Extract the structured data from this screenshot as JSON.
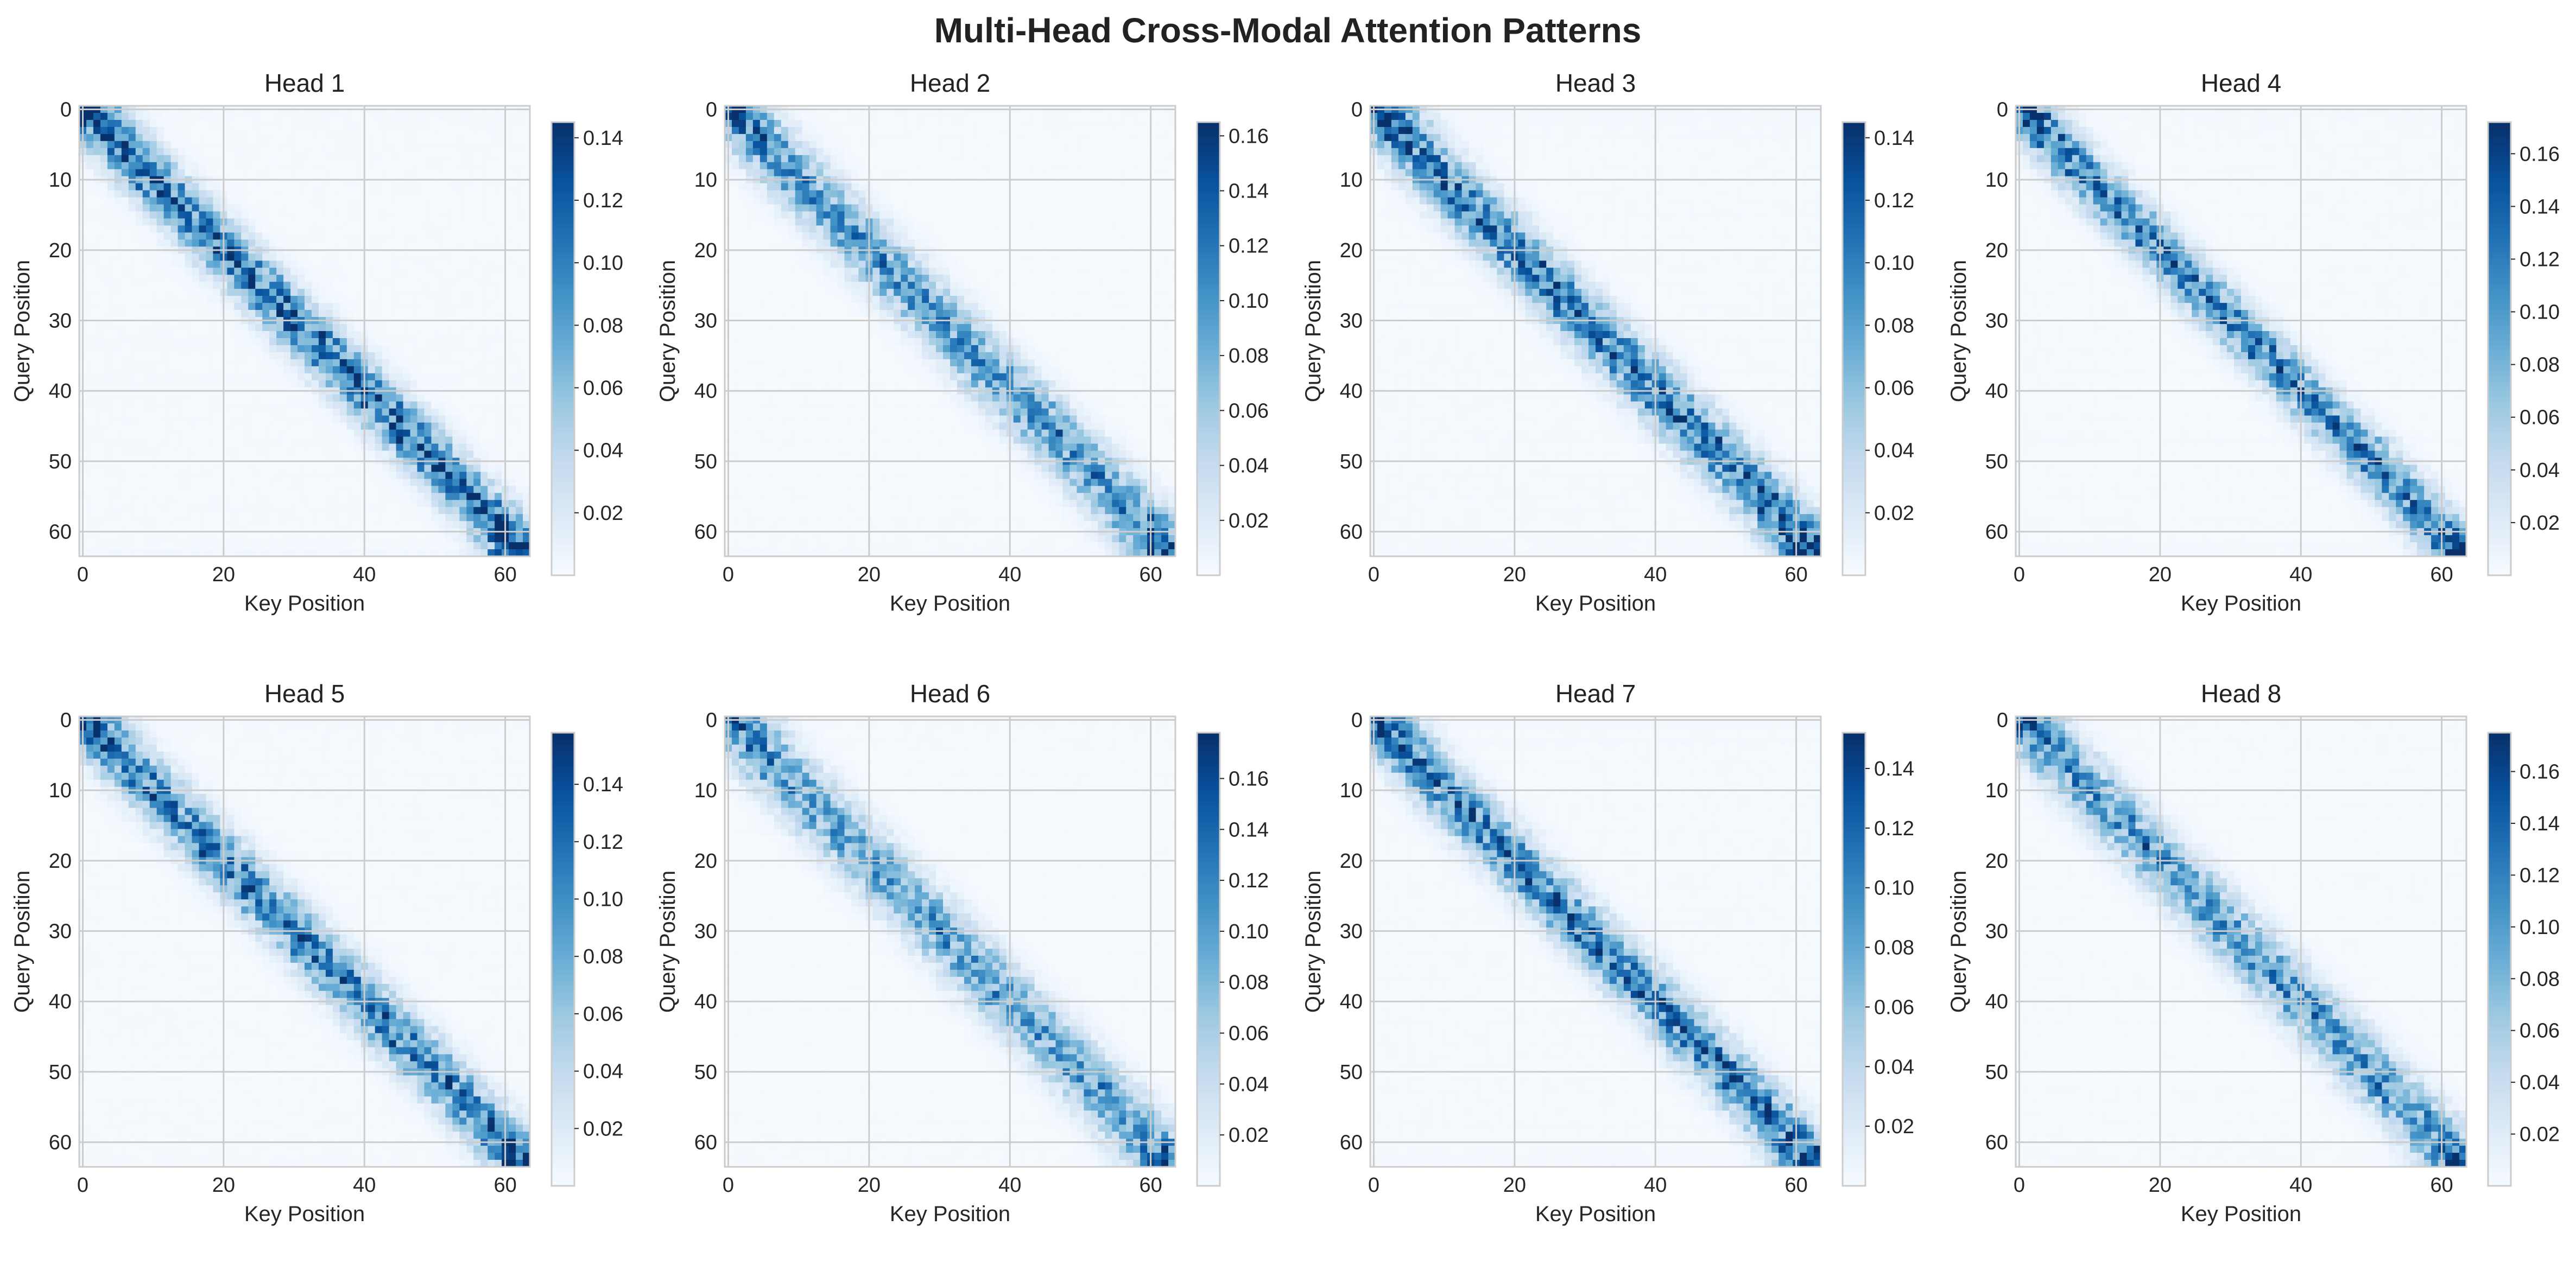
{
  "figure": {
    "title": "Multi-Head Cross-Modal Attention Patterns"
  },
  "colormap": {
    "name": "Blues",
    "stops": [
      "#f7fbff",
      "#deebf7",
      "#c6dbef",
      "#9ecae1",
      "#6baed6",
      "#4292c6",
      "#2171b5",
      "#08519c",
      "#08306b"
    ]
  },
  "chart_data": [
    {
      "type": "heatmap",
      "title": "Head 1",
      "xlabel": "Key Position",
      "ylabel": "Query Position",
      "matrix_size": 64,
      "xticks": [
        0,
        20,
        40,
        60
      ],
      "yticks": [
        0,
        10,
        20,
        30,
        40,
        50,
        60
      ],
      "grid": true,
      "vmin": 0.0,
      "vmax": 0.145,
      "colorbar_ticks": [
        0.02,
        0.04,
        0.06,
        0.08,
        0.1,
        0.12,
        0.14
      ],
      "colorbar_labels": [
        "0.02",
        "0.04",
        "0.06",
        "0.08",
        "0.10",
        "0.12",
        "0.14"
      ],
      "pattern": "diagonal",
      "band_width": 3.2,
      "edge_boost": 1.6,
      "seed": 11
    },
    {
      "type": "heatmap",
      "title": "Head 2",
      "xlabel": "Key Position",
      "ylabel": "Query Position",
      "matrix_size": 64,
      "xticks": [
        0,
        20,
        40,
        60
      ],
      "yticks": [
        0,
        10,
        20,
        30,
        40,
        50,
        60
      ],
      "grid": true,
      "vmin": 0.0,
      "vmax": 0.165,
      "colorbar_ticks": [
        0.02,
        0.04,
        0.06,
        0.08,
        0.1,
        0.12,
        0.14,
        0.16
      ],
      "colorbar_labels": [
        "0.02",
        "0.04",
        "0.06",
        "0.08",
        "0.10",
        "0.12",
        "0.14",
        "0.16"
      ],
      "pattern": "diagonal",
      "band_width": 3.6,
      "edge_boost": 1.5,
      "seed": 23
    },
    {
      "type": "heatmap",
      "title": "Head 3",
      "xlabel": "Key Position",
      "ylabel": "Query Position",
      "matrix_size": 64,
      "xticks": [
        0,
        20,
        40,
        60
      ],
      "yticks": [
        0,
        10,
        20,
        30,
        40,
        50,
        60
      ],
      "grid": true,
      "vmin": 0.0,
      "vmax": 0.145,
      "colorbar_ticks": [
        0.02,
        0.04,
        0.06,
        0.08,
        0.1,
        0.12,
        0.14
      ],
      "colorbar_labels": [
        "0.02",
        "0.04",
        "0.06",
        "0.08",
        "0.10",
        "0.12",
        "0.14"
      ],
      "pattern": "diagonal",
      "band_width": 3.4,
      "edge_boost": 1.7,
      "seed": 37
    },
    {
      "type": "heatmap",
      "title": "Head 4",
      "xlabel": "Key Position",
      "ylabel": "Query Position",
      "matrix_size": 64,
      "xticks": [
        0,
        20,
        40,
        60
      ],
      "yticks": [
        0,
        10,
        20,
        30,
        40,
        50,
        60
      ],
      "grid": true,
      "vmin": 0.0,
      "vmax": 0.172,
      "colorbar_ticks": [
        0.02,
        0.04,
        0.06,
        0.08,
        0.1,
        0.12,
        0.14,
        0.16
      ],
      "colorbar_labels": [
        "0.02",
        "0.04",
        "0.06",
        "0.08",
        "0.10",
        "0.12",
        "0.14",
        "0.16"
      ],
      "pattern": "diagonal",
      "band_width": 3.0,
      "edge_boost": 1.8,
      "seed": 41
    },
    {
      "type": "heatmap",
      "title": "Head 5",
      "xlabel": "Key Position",
      "ylabel": "Query Position",
      "matrix_size": 64,
      "xticks": [
        0,
        20,
        40,
        60
      ],
      "yticks": [
        0,
        10,
        20,
        30,
        40,
        50,
        60
      ],
      "grid": true,
      "vmin": 0.0,
      "vmax": 0.158,
      "colorbar_ticks": [
        0.02,
        0.04,
        0.06,
        0.08,
        0.1,
        0.12,
        0.14
      ],
      "colorbar_labels": [
        "0.02",
        "0.04",
        "0.06",
        "0.08",
        "0.10",
        "0.12",
        "0.14"
      ],
      "pattern": "diagonal",
      "band_width": 3.3,
      "edge_boost": 1.6,
      "seed": 53
    },
    {
      "type": "heatmap",
      "title": "Head 6",
      "xlabel": "Key Position",
      "ylabel": "Query Position",
      "matrix_size": 64,
      "xticks": [
        0,
        20,
        40,
        60
      ],
      "yticks": [
        0,
        10,
        20,
        30,
        40,
        50,
        60
      ],
      "grid": true,
      "vmin": 0.0,
      "vmax": 0.178,
      "colorbar_ticks": [
        0.02,
        0.04,
        0.06,
        0.08,
        0.1,
        0.12,
        0.14,
        0.16
      ],
      "colorbar_labels": [
        "0.02",
        "0.04",
        "0.06",
        "0.08",
        "0.10",
        "0.12",
        "0.14",
        "0.16"
      ],
      "pattern": "diagonal",
      "band_width": 3.7,
      "edge_boost": 1.7,
      "seed": 67
    },
    {
      "type": "heatmap",
      "title": "Head 7",
      "xlabel": "Key Position",
      "ylabel": "Query Position",
      "matrix_size": 64,
      "xticks": [
        0,
        20,
        40,
        60
      ],
      "yticks": [
        0,
        10,
        20,
        30,
        40,
        50,
        60
      ],
      "grid": true,
      "vmin": 0.0,
      "vmax": 0.152,
      "colorbar_ticks": [
        0.02,
        0.04,
        0.06,
        0.08,
        0.1,
        0.12,
        0.14
      ],
      "colorbar_labels": [
        "0.02",
        "0.04",
        "0.06",
        "0.08",
        "0.10",
        "0.12",
        "0.14"
      ],
      "pattern": "diagonal",
      "band_width": 3.3,
      "edge_boost": 1.9,
      "seed": 79
    },
    {
      "type": "heatmap",
      "title": "Head 8",
      "xlabel": "Key Position",
      "ylabel": "Query Position",
      "matrix_size": 64,
      "xticks": [
        0,
        20,
        40,
        60
      ],
      "yticks": [
        0,
        10,
        20,
        30,
        40,
        50,
        60
      ],
      "grid": true,
      "vmin": 0.0,
      "vmax": 0.175,
      "colorbar_ticks": [
        0.02,
        0.04,
        0.06,
        0.08,
        0.1,
        0.12,
        0.14,
        0.16
      ],
      "colorbar_labels": [
        "0.02",
        "0.04",
        "0.06",
        "0.08",
        "0.10",
        "0.12",
        "0.14",
        "0.16"
      ],
      "pattern": "diagonal",
      "band_width": 3.5,
      "edge_boost": 1.6,
      "seed": 83
    }
  ]
}
